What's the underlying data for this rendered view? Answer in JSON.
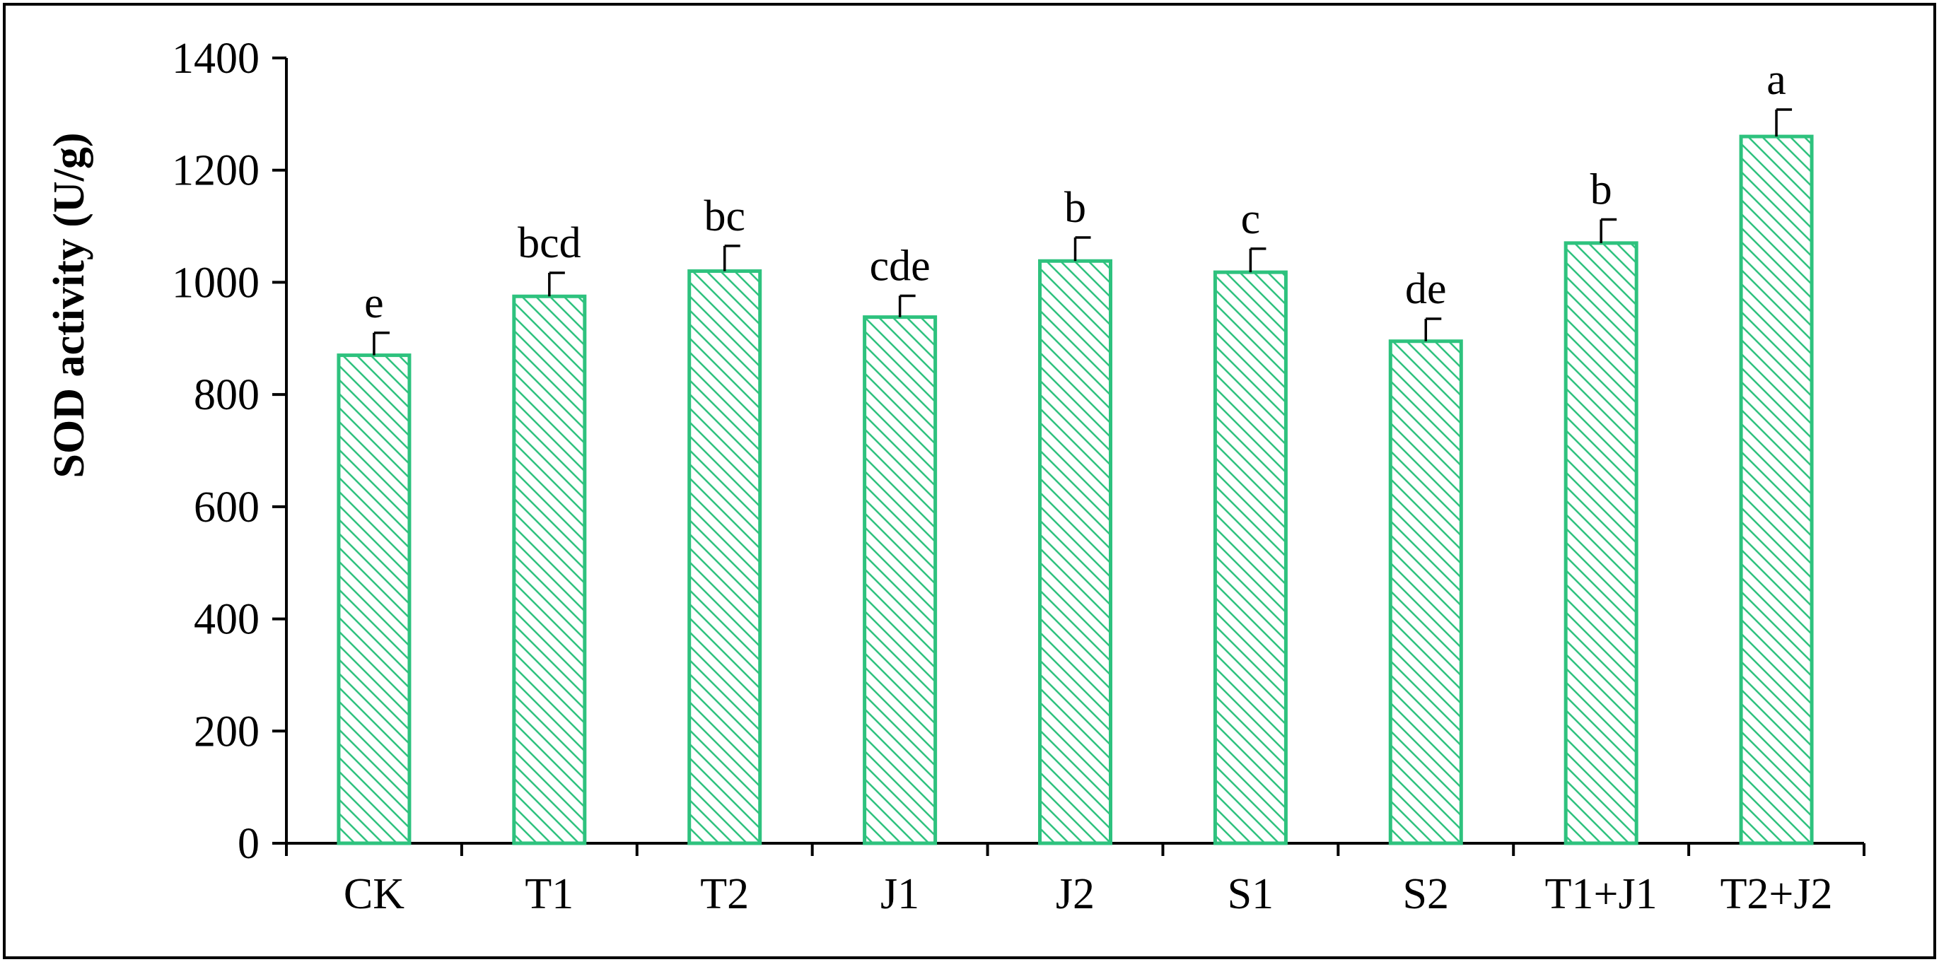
{
  "chart_data": {
    "type": "bar",
    "title": "",
    "xlabel": "",
    "ylabel": "SOD activity (U/g)",
    "ylim": [
      0,
      1400
    ],
    "yticks": [
      "0",
      "200",
      "400",
      "600",
      "800",
      "1000",
      "1200",
      "1400"
    ],
    "grid": false,
    "legend": "none",
    "categories": [
      "CK",
      "T1",
      "T2",
      "J1",
      "J2",
      "S1",
      "S2",
      "T1+J1",
      "T2+J2"
    ],
    "values": [
      870,
      975,
      1020,
      938,
      1038,
      1018,
      895,
      1070,
      1260
    ],
    "errors": [
      40,
      42,
      45,
      38,
      42,
      42,
      40,
      42,
      48
    ],
    "significance_letters": [
      "e",
      "bcd",
      "bc",
      "cde",
      "b",
      "c",
      "de",
      "b",
      "a"
    ],
    "bar_style": {
      "fill": "hatched diagonal lines",
      "color": "#2ec27e"
    }
  }
}
